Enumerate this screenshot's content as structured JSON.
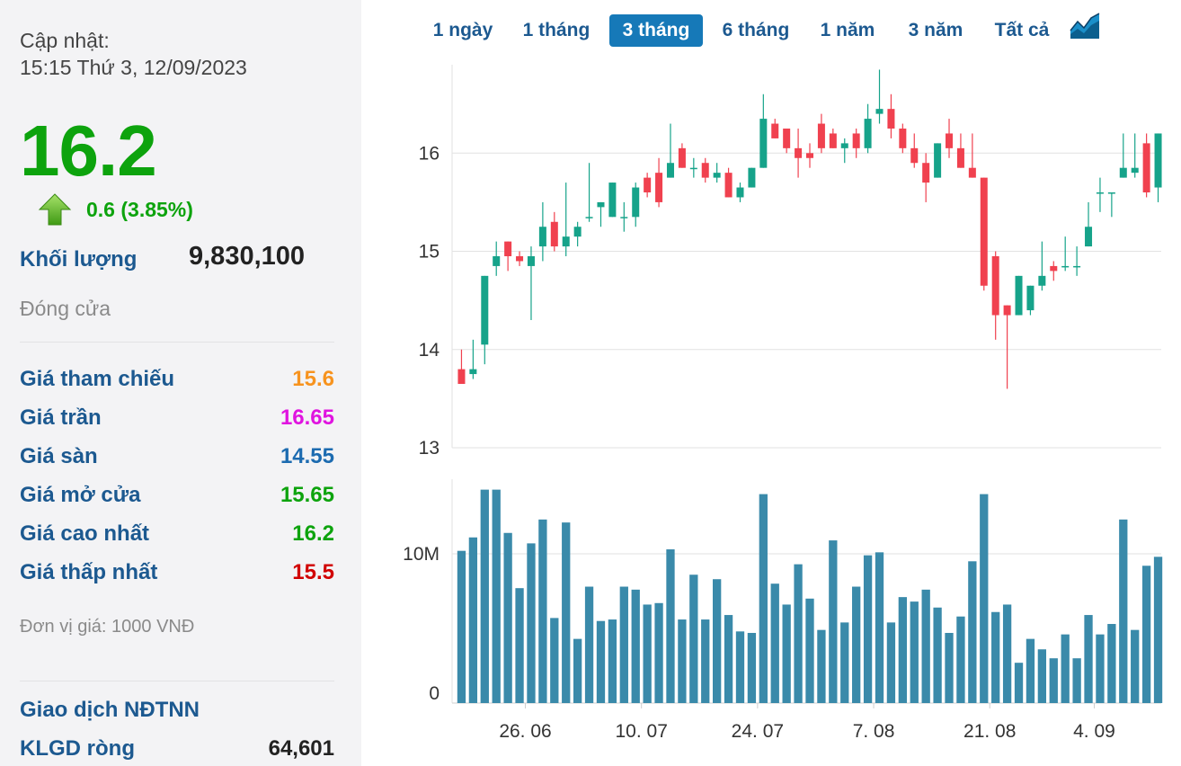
{
  "sidebar": {
    "update_label": "Cập nhật:",
    "update_time": "15:15 Thứ 3, 12/09/2023",
    "price": "16.2",
    "change": "0.6 (3.85%)",
    "volume_label": "Khối lượng",
    "volume_value": "9,830,100",
    "status": "Đóng cửa",
    "rows": [
      {
        "label": "Giá tham chiếu",
        "value": "15.6",
        "color": "#f7931e"
      },
      {
        "label": "Giá trần",
        "value": "16.65",
        "color": "#e014e0"
      },
      {
        "label": "Giá sàn",
        "value": "14.55",
        "color": "#1c6bb0"
      },
      {
        "label": "Giá mở cửa",
        "value": "15.65",
        "color": "#0da30d"
      },
      {
        "label": "Giá cao nhất",
        "value": "16.2",
        "color": "#0da30d"
      },
      {
        "label": "Giá thấp nhất",
        "value": "15.5",
        "color": "#d10000"
      }
    ],
    "unit_note": "Đơn vị giá: 1000 VNĐ",
    "foreign_title": "Giao dịch NĐTNN",
    "net_label": "KLGD ròng",
    "net_value": "64,601"
  },
  "tabs": [
    {
      "label": "1 ngày",
      "active": false
    },
    {
      "label": "1 tháng",
      "active": false
    },
    {
      "label": "3 tháng",
      "active": true
    },
    {
      "label": "6 tháng",
      "active": false
    },
    {
      "label": "1 năm",
      "active": false
    },
    {
      "label": "3 năm",
      "active": false
    },
    {
      "label": "Tất cả",
      "active": false
    }
  ],
  "chart_data": {
    "type": "candlestick",
    "colors": {
      "up": "#16a38a",
      "down": "#f0414f",
      "volume": "#3a8aaa",
      "grid": "#e2e2e2"
    },
    "price_axis": {
      "ticks": [
        13,
        14,
        15,
        16
      ],
      "ylim": [
        13,
        16.9
      ]
    },
    "volume_axis": {
      "ticks": [
        "0",
        "10M"
      ],
      "tick_values": [
        0,
        10
      ],
      "ylim": [
        0,
        15
      ]
    },
    "x_labels": [
      {
        "index": 5.5,
        "label": "26. 06"
      },
      {
        "index": 15.5,
        "label": "10. 07"
      },
      {
        "index": 25.5,
        "label": "24. 07"
      },
      {
        "index": 35.5,
        "label": "7. 08"
      },
      {
        "index": 45.5,
        "label": "21. 08"
      },
      {
        "index": 54.5,
        "label": "4. 09"
      }
    ],
    "candles": [
      [
        13.8,
        14.0,
        13.65,
        13.65,
        10.2
      ],
      [
        13.75,
        14.1,
        13.7,
        13.8,
        11.1
      ],
      [
        14.05,
        14.75,
        13.85,
        14.75,
        14.3
      ],
      [
        14.85,
        15.1,
        14.75,
        14.95,
        14.3
      ],
      [
        15.1,
        15.1,
        14.8,
        14.95,
        11.4
      ],
      [
        14.95,
        15.0,
        14.85,
        14.9,
        7.7
      ],
      [
        14.85,
        15.05,
        14.3,
        14.95,
        10.7
      ],
      [
        15.05,
        15.5,
        14.9,
        15.25,
        12.3
      ],
      [
        15.3,
        15.4,
        15.0,
        15.05,
        5.7
      ],
      [
        15.05,
        15.7,
        14.95,
        15.15,
        12.1
      ],
      [
        15.15,
        15.3,
        15.05,
        15.25,
        4.3
      ],
      [
        15.35,
        15.9,
        15.3,
        15.35,
        7.8
      ],
      [
        15.45,
        15.5,
        15.25,
        15.5,
        5.5
      ],
      [
        15.35,
        15.7,
        15.35,
        15.7,
        5.6
      ],
      [
        15.35,
        15.5,
        15.2,
        15.35,
        7.8
      ],
      [
        15.35,
        15.7,
        15.25,
        15.65,
        7.6
      ],
      [
        15.75,
        15.8,
        15.55,
        15.6,
        6.6
      ],
      [
        15.8,
        15.95,
        15.45,
        15.5,
        6.7
      ],
      [
        15.75,
        16.3,
        15.75,
        15.9,
        10.3
      ],
      [
        16.05,
        16.1,
        15.85,
        15.85,
        5.6
      ],
      [
        15.85,
        15.95,
        15.75,
        15.85,
        8.6
      ],
      [
        15.9,
        15.95,
        15.7,
        15.75,
        5.6
      ],
      [
        15.75,
        15.9,
        15.7,
        15.8,
        8.3
      ],
      [
        15.8,
        15.85,
        15.55,
        15.55,
        5.9
      ],
      [
        15.55,
        15.7,
        15.5,
        15.65,
        4.8
      ],
      [
        15.65,
        15.85,
        15.65,
        15.85,
        4.7
      ],
      [
        15.85,
        16.6,
        15.85,
        16.35,
        14.0
      ],
      [
        16.3,
        16.35,
        16.15,
        16.15,
        8.0
      ],
      [
        16.25,
        16.25,
        16.0,
        16.05,
        6.6
      ],
      [
        16.05,
        16.25,
        15.75,
        15.95,
        9.3
      ],
      [
        16.0,
        16.1,
        15.85,
        15.95,
        7.0
      ],
      [
        16.3,
        16.4,
        16.0,
        16.05,
        4.9
      ],
      [
        16.2,
        16.25,
        16.05,
        16.05,
        10.9
      ],
      [
        16.05,
        16.15,
        15.9,
        16.1,
        5.4
      ],
      [
        16.2,
        16.25,
        15.95,
        16.05,
        7.8
      ],
      [
        16.05,
        16.5,
        16.0,
        16.35,
        9.9
      ],
      [
        16.4,
        16.85,
        16.3,
        16.45,
        10.1
      ],
      [
        16.45,
        16.6,
        16.15,
        16.25,
        5.4
      ],
      [
        16.25,
        16.3,
        16.0,
        16.05,
        7.1
      ],
      [
        16.05,
        16.2,
        15.85,
        15.9,
        6.8
      ],
      [
        15.9,
        16.0,
        15.5,
        15.7,
        7.6
      ],
      [
        15.75,
        16.1,
        15.75,
        16.1,
        6.4
      ],
      [
        16.2,
        16.35,
        15.95,
        16.05,
        4.7
      ],
      [
        16.05,
        16.2,
        15.85,
        15.85,
        5.8
      ],
      [
        15.85,
        16.2,
        15.75,
        15.75,
        9.5
      ],
      [
        15.75,
        15.75,
        14.6,
        14.65,
        14.0
      ],
      [
        14.95,
        15.0,
        14.1,
        14.35,
        6.1
      ],
      [
        14.45,
        14.45,
        13.6,
        14.35,
        6.6
      ],
      [
        14.35,
        14.75,
        14.35,
        14.75,
        2.7
      ],
      [
        14.4,
        14.65,
        14.35,
        14.65,
        4.3
      ],
      [
        14.65,
        15.1,
        14.6,
        14.75,
        3.6
      ],
      [
        14.85,
        14.9,
        14.7,
        14.8,
        3.0
      ],
      [
        14.85,
        15.15,
        14.8,
        14.85,
        4.6
      ],
      [
        14.85,
        15.05,
        14.75,
        14.85,
        3.0
      ],
      [
        15.05,
        15.5,
        15.05,
        15.25,
        5.9
      ],
      [
        15.6,
        15.75,
        15.4,
        15.6,
        4.6
      ],
      [
        15.6,
        15.6,
        15.35,
        15.6,
        5.3
      ],
      [
        15.75,
        16.2,
        15.75,
        15.85,
        12.3
      ],
      [
        15.8,
        16.2,
        15.75,
        15.85,
        4.9
      ],
      [
        16.1,
        16.2,
        15.55,
        15.6,
        9.2
      ],
      [
        15.65,
        16.2,
        15.5,
        16.2,
        9.8
      ]
    ]
  }
}
